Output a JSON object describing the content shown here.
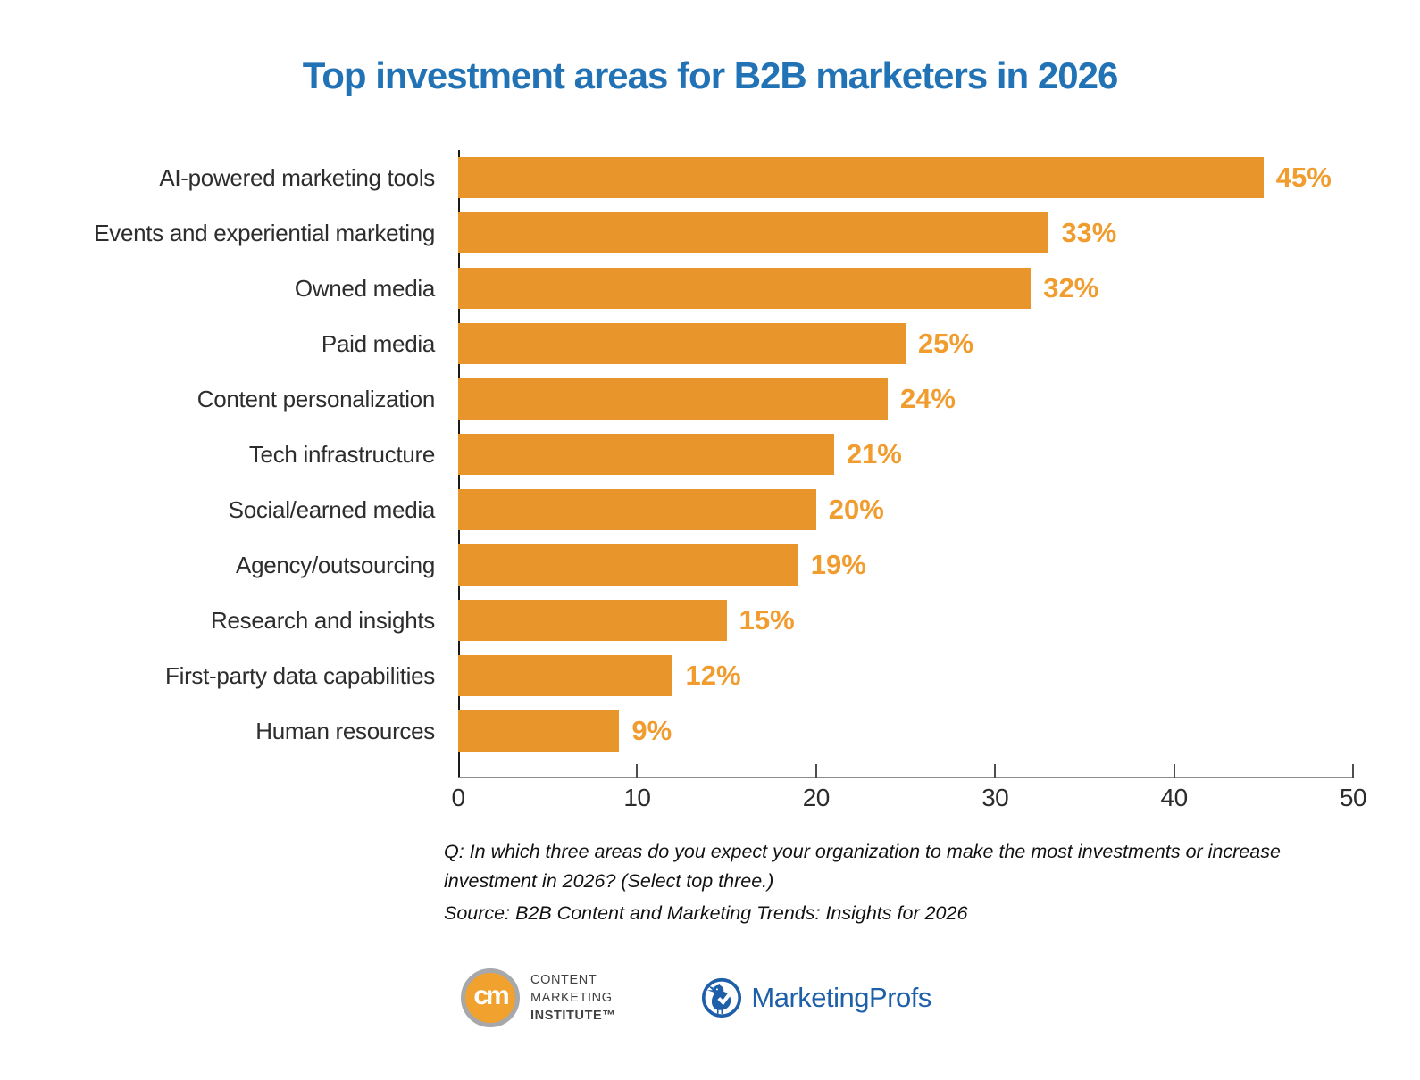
{
  "chart_data": {
    "type": "bar",
    "orientation": "horizontal",
    "title": "Top investment areas for B2B marketers in 2026",
    "title_color": "#2273B5",
    "categories": [
      "AI-powered marketing tools",
      "Events and experiential marketing",
      "Owned media",
      "Paid media",
      "Content personalization",
      "Tech infrastructure",
      "Social/earned media",
      "Agency/outsourcing",
      "Research and insights",
      "First-party data capabilities",
      "Human resources"
    ],
    "values": [
      45,
      33,
      32,
      25,
      24,
      21,
      20,
      19,
      15,
      12,
      9
    ],
    "value_labels": [
      "45%",
      "33%",
      "32%",
      "25%",
      "24%",
      "21%",
      "20%",
      "19%",
      "15%",
      "12%",
      "9%"
    ],
    "xlim": [
      0,
      50
    ],
    "x_ticks": [
      0,
      10,
      20,
      30,
      40,
      50
    ],
    "grid": false,
    "legend": "none",
    "bar_color": "#E8952B",
    "value_label_color": "#F09C2E",
    "axis_color": "#1A1A1A"
  },
  "footer": {
    "question": "Q: In which three areas do you expect your organization to make the most investments or increase investment in 2026? (Select top three.)",
    "source": "Source: B2B Content and Marketing Trends: Insights for 2026"
  },
  "logos": {
    "cmi": {
      "monogram": "cm",
      "line1": "CONTENT",
      "line2": "MARKETING",
      "line3": "INSTITUTE™",
      "circle_color": "#F1A12D"
    },
    "marketingprofs": {
      "wordmark": "MarketingProfs",
      "color": "#1E5FA9"
    }
  }
}
